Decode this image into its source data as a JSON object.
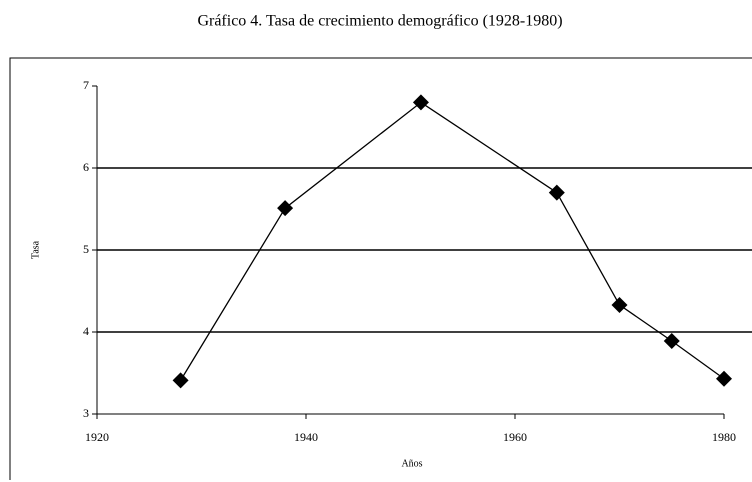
{
  "chart_data": {
    "type": "line",
    "title": "Gráfico 4. Tasa de crecimiento demográfico (1928-1980)",
    "x_label": "Años",
    "y_label": "Tasa",
    "x": [
      1928,
      1938,
      1951,
      1964,
      1970,
      1975,
      1980
    ],
    "series": [
      {
        "name": "Tasa",
        "color": "#000000",
        "values": [
          3.41,
          5.51,
          6.8,
          5.7,
          4.33,
          3.89,
          3.43
        ]
      }
    ],
    "xlim": [
      1920,
      1980
    ],
    "xticks": [
      1920,
      1940,
      1960,
      1980
    ],
    "ylim": [
      3,
      7
    ],
    "yticks": [
      3,
      4,
      5,
      6,
      7
    ],
    "grid": true
  }
}
